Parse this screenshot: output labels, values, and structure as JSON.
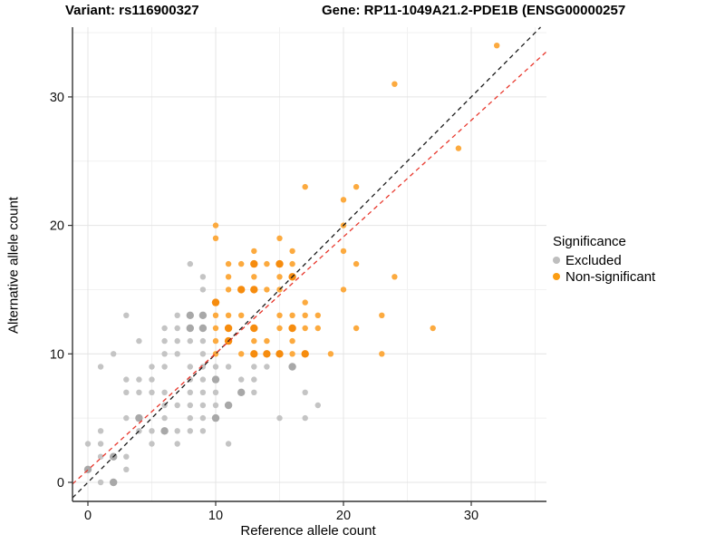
{
  "titles": {
    "variant": "Variant: rs116900327",
    "gene": "Gene: RP11-1049A21.2-PDE1B (ENSG00000257"
  },
  "axes": {
    "x_label": "Reference allele count",
    "y_label": "Alternative allele count",
    "x_ticks": [
      0,
      10,
      20,
      30
    ],
    "y_ticks": [
      0,
      10,
      20,
      30
    ],
    "x_minor": [
      5,
      15,
      25,
      35
    ],
    "y_minor": [
      5,
      15,
      25,
      35
    ],
    "x_range": [
      -1.2,
      35.9
    ],
    "y_range": [
      -1.5,
      35.4
    ],
    "grid": "on",
    "axis_color": "#333333",
    "major_grid_color": "#e4e4e4",
    "minor_grid_color": "#f1f1f1"
  },
  "legend": {
    "title": "Significance",
    "position": "right",
    "items": [
      {
        "label": "Excluded",
        "color": "#bebebe"
      },
      {
        "label": "Non-significant",
        "color": "#fb9d13"
      }
    ]
  },
  "chart_data": {
    "type": "scatter",
    "title": "Variant: rs116900327 / Gene: RP11-1049A21.2-PDE1B (ENSG00000257",
    "xlabel": "Reference allele count",
    "ylabel": "Alternative allele count",
    "xlim": [
      -1.2,
      35.9
    ],
    "ylim": [
      -1.5,
      35.4
    ],
    "series": [
      {
        "name": "Excluded",
        "color": "#c4c4c4",
        "color_overplotted": "#a8a8a8",
        "points": [
          [
            1,
            0
          ],
          [
            2,
            0,
            1
          ],
          [
            0,
            1,
            1
          ],
          [
            3,
            1
          ],
          [
            1,
            2
          ],
          [
            2,
            2,
            1
          ],
          [
            3,
            2
          ],
          [
            0,
            3
          ],
          [
            1,
            3
          ],
          [
            5,
            3
          ],
          [
            7,
            3
          ],
          [
            11,
            3
          ],
          [
            1,
            4
          ],
          [
            4,
            4
          ],
          [
            5,
            4
          ],
          [
            6,
            4,
            1
          ],
          [
            7,
            4
          ],
          [
            8,
            4
          ],
          [
            9,
            4
          ],
          [
            3,
            5
          ],
          [
            4,
            5,
            1
          ],
          [
            6,
            5
          ],
          [
            8,
            5
          ],
          [
            9,
            5
          ],
          [
            10,
            5,
            1
          ],
          [
            15,
            5
          ],
          [
            17,
            5
          ],
          [
            6,
            6
          ],
          [
            7,
            6
          ],
          [
            8,
            6
          ],
          [
            9,
            6
          ],
          [
            10,
            6
          ],
          [
            11,
            6,
            1
          ],
          [
            18,
            6
          ],
          [
            3,
            7
          ],
          [
            4,
            7
          ],
          [
            5,
            7
          ],
          [
            6,
            7
          ],
          [
            8,
            7
          ],
          [
            9,
            7
          ],
          [
            10,
            7
          ],
          [
            12,
            7,
            1
          ],
          [
            13,
            7
          ],
          [
            17,
            7
          ],
          [
            3,
            8
          ],
          [
            4,
            8
          ],
          [
            5,
            8
          ],
          [
            8,
            8
          ],
          [
            9,
            8
          ],
          [
            10,
            8,
            1
          ],
          [
            12,
            8
          ],
          [
            13,
            8
          ],
          [
            1,
            9
          ],
          [
            5,
            9
          ],
          [
            6,
            9
          ],
          [
            8,
            9
          ],
          [
            9,
            9
          ],
          [
            10,
            9
          ],
          [
            11,
            9
          ],
          [
            13,
            9
          ],
          [
            14,
            9
          ],
          [
            16,
            9,
            1
          ],
          [
            2,
            10
          ],
          [
            6,
            10
          ],
          [
            7,
            10
          ],
          [
            9,
            10
          ],
          [
            4,
            11
          ],
          [
            6,
            11
          ],
          [
            7,
            11
          ],
          [
            8,
            11
          ],
          [
            9,
            11
          ],
          [
            6,
            12
          ],
          [
            7,
            12
          ],
          [
            8,
            12,
            1
          ],
          [
            9,
            12,
            1
          ],
          [
            3,
            13
          ],
          [
            7,
            13
          ],
          [
            8,
            13,
            1
          ],
          [
            9,
            13,
            1
          ],
          [
            9,
            15
          ],
          [
            9,
            16
          ],
          [
            8,
            17
          ]
        ]
      },
      {
        "name": "Non-significant",
        "color": "#fcaa3f",
        "color_overplotted": "#f68c0e",
        "points": [
          [
            10,
            10
          ],
          [
            12,
            10
          ],
          [
            13,
            10,
            1
          ],
          [
            14,
            10,
            1
          ],
          [
            15,
            10,
            1
          ],
          [
            16,
            10
          ],
          [
            17,
            10,
            1
          ],
          [
            19,
            10
          ],
          [
            23,
            10
          ],
          [
            10,
            11
          ],
          [
            11,
            11,
            1
          ],
          [
            13,
            11
          ],
          [
            14,
            11
          ],
          [
            16,
            11
          ],
          [
            10,
            12
          ],
          [
            11,
            12,
            1
          ],
          [
            13,
            12,
            1
          ],
          [
            15,
            12
          ],
          [
            16,
            12,
            1
          ],
          [
            17,
            12
          ],
          [
            18,
            12
          ],
          [
            21,
            12
          ],
          [
            27,
            12
          ],
          [
            10,
            13
          ],
          [
            11,
            13
          ],
          [
            12,
            13
          ],
          [
            15,
            13
          ],
          [
            16,
            13
          ],
          [
            17,
            13
          ],
          [
            18,
            13
          ],
          [
            23,
            13
          ],
          [
            10,
            14,
            1
          ],
          [
            17,
            14
          ],
          [
            11,
            15
          ],
          [
            12,
            15,
            1
          ],
          [
            13,
            15,
            1
          ],
          [
            14,
            15
          ],
          [
            15,
            15
          ],
          [
            20,
            15
          ],
          [
            11,
            16
          ],
          [
            13,
            16
          ],
          [
            15,
            16
          ],
          [
            16,
            16,
            1
          ],
          [
            24,
            16
          ],
          [
            11,
            17
          ],
          [
            12,
            17
          ],
          [
            13,
            17,
            1
          ],
          [
            14,
            17
          ],
          [
            15,
            17,
            1
          ],
          [
            16,
            17
          ],
          [
            21,
            17
          ],
          [
            13,
            18
          ],
          [
            16,
            18
          ],
          [
            20,
            18
          ],
          [
            10,
            19
          ],
          [
            15,
            19
          ],
          [
            10,
            20
          ],
          [
            20,
            20
          ],
          [
            20,
            22
          ],
          [
            17,
            23
          ],
          [
            21,
            23
          ],
          [
            24,
            31
          ],
          [
            29,
            26
          ],
          [
            32,
            34
          ]
        ]
      }
    ],
    "lines": [
      {
        "name": "identity-line",
        "slope": 1,
        "intercept": 0,
        "color": "#1a1a1a",
        "style": "dashed"
      },
      {
        "name": "fit-line",
        "slope": 0.907,
        "intercept": 0.97,
        "color": "#e8372c",
        "style": "dashed"
      }
    ]
  }
}
